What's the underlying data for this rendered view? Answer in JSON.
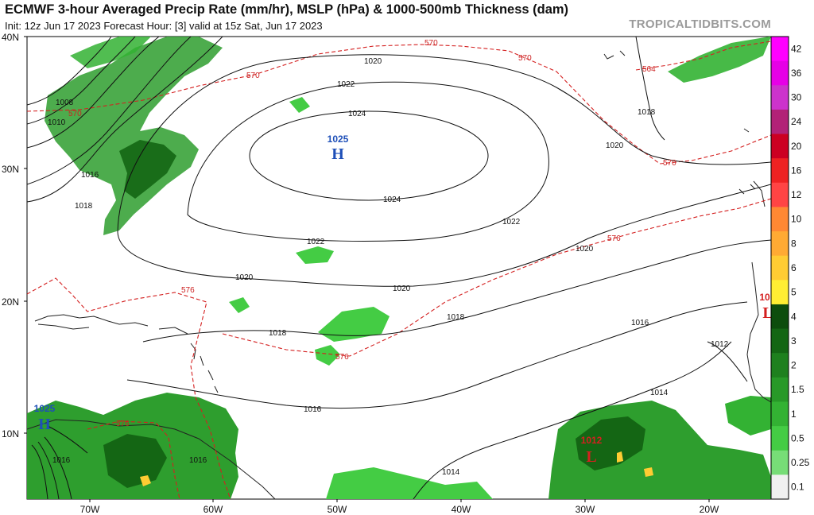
{
  "header": {
    "title": "ECMWF 3-hour Averaged Precip Rate (mm/hr), MSLP (hPa) & 1000-500mb Thickness (dam)",
    "subtitle": "Init: 12z Jun 17 2023    Forecast Hour: [3]    valid at 15z Sat, Jun 17 2023",
    "brand": "TROPICALTIDBITS.COM"
  },
  "axes": {
    "lat_labels": [
      "40N",
      "30N",
      "20N",
      "10N"
    ],
    "lon_labels": [
      "70W",
      "60W",
      "50W",
      "40W",
      "30W",
      "20W"
    ]
  },
  "isobar_labels": [
    "1020",
    "1022",
    "1024",
    "1024",
    "1022",
    "1022",
    "1020",
    "1020",
    "1020",
    "1020",
    "1018",
    "1018",
    "1018",
    "1016",
    "1016",
    "1016",
    "1014",
    "1014",
    "1012",
    "1010",
    "1008",
    "1016",
    "1018",
    "1016"
  ],
  "thickness_labels": [
    "570",
    "570",
    "570",
    "570",
    "564",
    "570",
    "576",
    "576",
    "576",
    "576"
  ],
  "pressure_centers": [
    {
      "type": "H",
      "value": "1025",
      "color": "#1e4fb8"
    },
    {
      "type": "L",
      "value": "1012",
      "color": "#d42020"
    },
    {
      "type": "H",
      "value": "1025",
      "color": "#1e4fb8"
    },
    {
      "type": "L",
      "value": "10",
      "color": "#d42020"
    }
  ],
  "colorbar": {
    "labels": [
      "42",
      "36",
      "30",
      "24",
      "20",
      "16",
      "12",
      "10",
      "8",
      "6",
      "5",
      "4",
      "3",
      "2",
      "1.5",
      "1",
      "0.5",
      "0.25",
      "0.1"
    ],
    "colors": [
      "#ff00ff",
      "#e600e6",
      "#cc33cc",
      "#b22277",
      "#cc0022",
      "#ee2222",
      "#ff4444",
      "#ff8833",
      "#ffaa33",
      "#ffcc33",
      "#ffee33",
      "#0d4d0d",
      "#146614",
      "#1e801e",
      "#289928",
      "#33b233",
      "#44cc44",
      "#77dd77",
      "#f0f0f0"
    ]
  }
}
